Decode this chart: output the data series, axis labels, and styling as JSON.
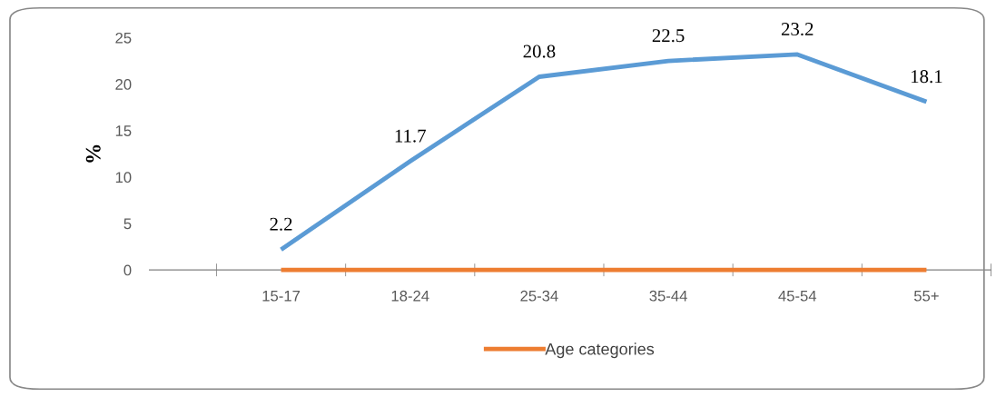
{
  "chart_data": {
    "type": "line",
    "ylabel": "%",
    "categories": [
      "15-17",
      "18-24",
      "25-34",
      "35-44",
      "45-54",
      "55+"
    ],
    "series": [
      {
        "color": "#5b9bd5",
        "values": [
          2.2,
          11.7,
          20.8,
          22.5,
          23.2,
          18.1
        ],
        "value_labels": [
          "2.2",
          "11.7",
          "20.8",
          "22.5",
          "23.2",
          "18.1"
        ]
      },
      {
        "name": "Age categories",
        "color": "#ed7d31",
        "values": [
          0,
          0,
          0,
          0,
          0,
          0
        ]
      }
    ],
    "ylim": [
      0,
      25
    ],
    "yticks": [
      0,
      5,
      10,
      15,
      20,
      25
    ],
    "grid": false,
    "legend": "bottom",
    "marker": "none",
    "line_style": "solid"
  }
}
